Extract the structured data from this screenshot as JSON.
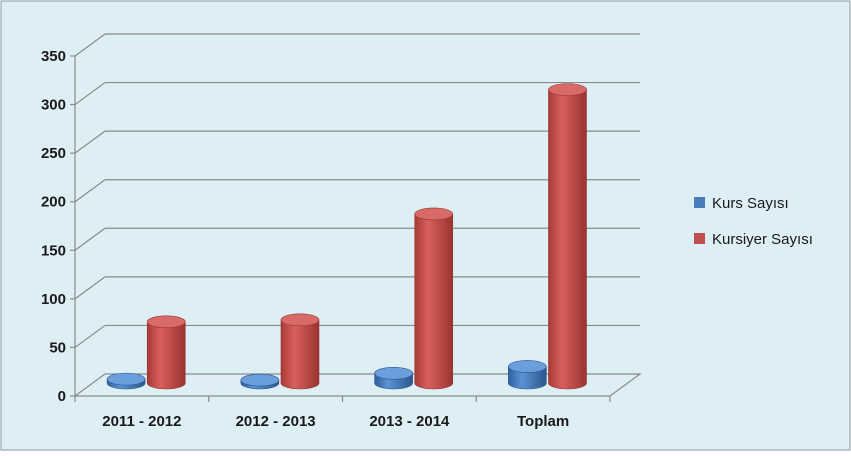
{
  "chart_data": {
    "type": "bar",
    "style": "3d-cylinder",
    "categories": [
      "2011 - 2012",
      "2012 - 2013",
      "2013 - 2014",
      "Toplam"
    ],
    "series": [
      {
        "name": "Kurs Sayısı",
        "values": [
          4,
          3,
          10,
          17
        ],
        "color": "#4a7ebb"
      },
      {
        "name": "Kursiyer Sayısı",
        "values": [
          63,
          65,
          174,
          302
        ],
        "color": "#c0504d"
      }
    ],
    "ylim": [
      0,
      350
    ],
    "yticks": [
      0,
      50,
      100,
      150,
      200,
      250,
      300,
      350
    ],
    "grid": true,
    "legend": "right",
    "background": "#deeef5"
  }
}
